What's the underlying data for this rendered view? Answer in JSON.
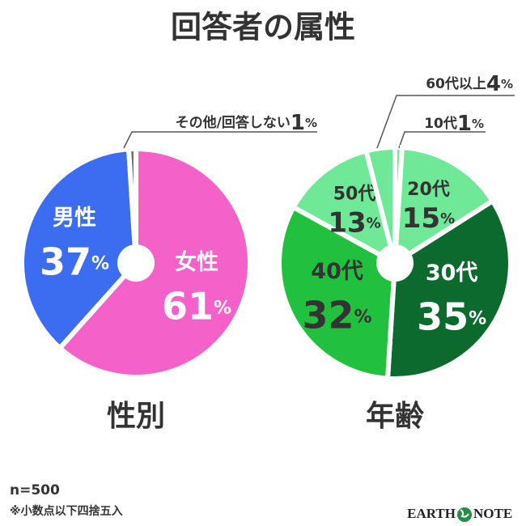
{
  "header": {
    "title": "回答者の属性"
  },
  "chart_data": [
    {
      "type": "pie",
      "title": "性別",
      "categories": [
        "女性",
        "男性",
        "その他/回答しない"
      ],
      "values": [
        61,
        37,
        1
      ],
      "value_labels": [
        "61%",
        "37%",
        "1%"
      ],
      "colors": [
        "#f462c9",
        "#3c6cf0",
        "#707070"
      ]
    },
    {
      "type": "pie",
      "title": "年齢",
      "categories": [
        "10代",
        "20代",
        "30代",
        "40代",
        "50代",
        "60代以上"
      ],
      "values": [
        1,
        15,
        35,
        32,
        13,
        4
      ],
      "value_labels": [
        "1%",
        "15%",
        "35%",
        "32%",
        "13%",
        "4%"
      ],
      "colors": [
        "#6fe897",
        "#6fe897",
        "#0d6a2f",
        "#22c03f",
        "#6fe897",
        "#6fe897"
      ]
    }
  ],
  "notes": [
    "n=500",
    "※小数点以下四捨五入"
  ],
  "logo": {
    "left": "EARTH",
    "right": "NOTE"
  }
}
